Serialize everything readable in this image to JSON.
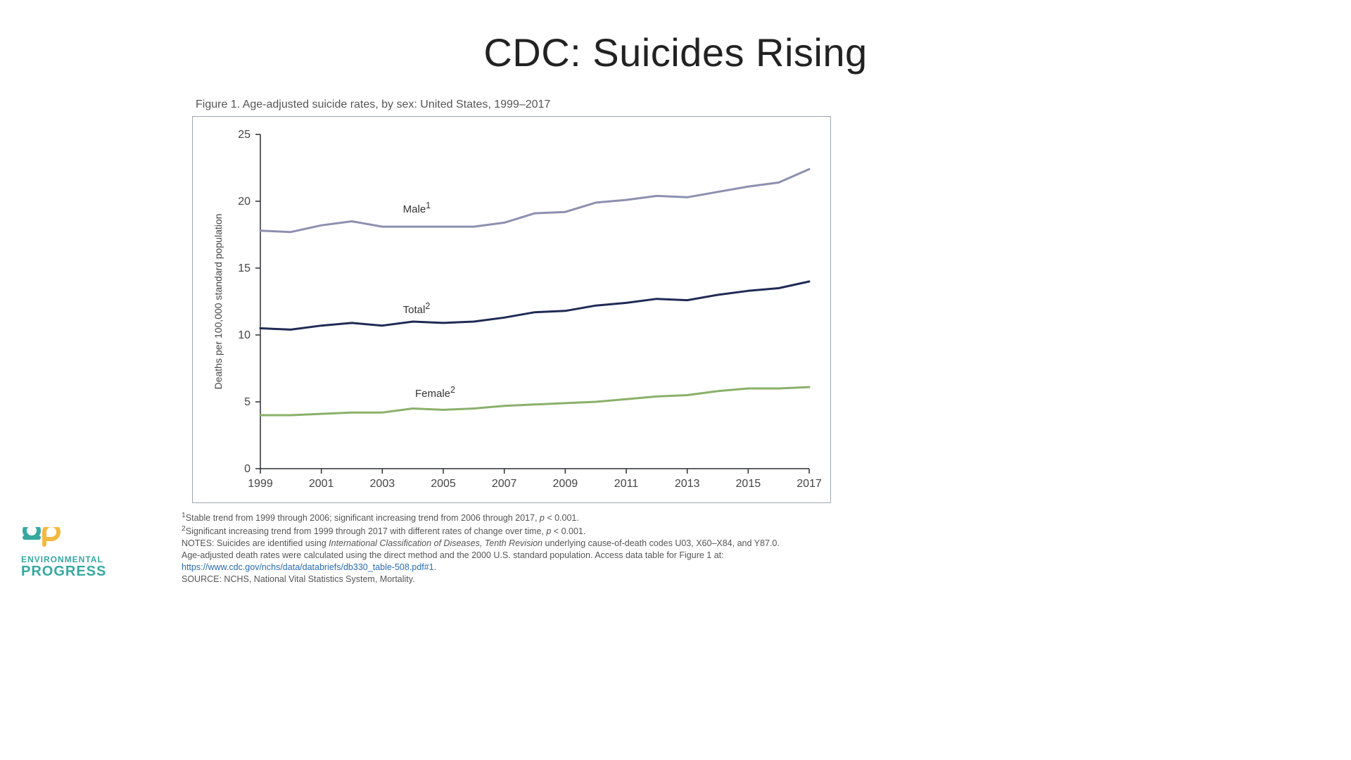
{
  "slide": {
    "title": "CDC: Suicides Rising"
  },
  "figure": {
    "caption": "Figure 1. Age-adjusted suicide rates, by sex: United States, 1999–2017",
    "type": "line",
    "background_color": "#ffffff",
    "frame_color": "#9fa6ad",
    "axis_color": "#2b2f33",
    "tick_font_size": 16,
    "y_axis": {
      "label": "Deaths per 100,000 standard population",
      "label_font_size": 14,
      "min": 0,
      "max": 25,
      "tick_step": 5,
      "ticks": [
        0,
        5,
        10,
        15,
        20,
        25
      ]
    },
    "x_axis": {
      "min": 1999,
      "max": 2017,
      "tick_step": 2,
      "ticks": [
        1999,
        2001,
        2003,
        2005,
        2007,
        2009,
        2011,
        2013,
        2015,
        2017
      ]
    },
    "years": [
      1999,
      2000,
      2001,
      2002,
      2003,
      2004,
      2005,
      2006,
      2007,
      2008,
      2009,
      2010,
      2011,
      2012,
      2013,
      2014,
      2015,
      2016,
      2017
    ],
    "series": [
      {
        "key": "male",
        "label_html": "Male<sup>1</sup>",
        "label_plain": "Male¹",
        "color": "#8d8fb0",
        "line_width": 3,
        "label_position": {
          "x": 2004.6,
          "y": 19.1
        },
        "values": [
          17.8,
          17.7,
          18.2,
          18.5,
          18.1,
          18.1,
          18.1,
          18.1,
          18.4,
          19.1,
          19.2,
          19.9,
          20.1,
          20.4,
          20.3,
          20.7,
          21.1,
          21.4,
          22.4
        ]
      },
      {
        "key": "total",
        "label_html": "Total<sup>2</sup>",
        "label_plain": "Total²",
        "color": "#1f2a55",
        "line_width": 3,
        "label_position": {
          "x": 2004.6,
          "y": 11.6
        },
        "values": [
          10.5,
          10.4,
          10.7,
          10.9,
          10.7,
          11.0,
          10.9,
          11.0,
          11.3,
          11.7,
          11.8,
          12.2,
          12.4,
          12.7,
          12.6,
          13.0,
          13.3,
          13.5,
          14.0
        ]
      },
      {
        "key": "female",
        "label_html": "Female<sup>2</sup>",
        "label_plain": "Female²",
        "color": "#8ab06a",
        "line_width": 3,
        "label_position": {
          "x": 2005.0,
          "y": 5.3
        },
        "values": [
          4.0,
          4.0,
          4.1,
          4.2,
          4.2,
          4.5,
          4.4,
          4.5,
          4.7,
          4.8,
          4.9,
          5.0,
          5.2,
          5.4,
          5.5,
          5.8,
          6.0,
          6.0,
          6.1
        ]
      }
    ]
  },
  "footnotes": {
    "note1_html": "<sup>1</sup>Stable trend from 1999 through 2006; significant increasing trend from 2006 through 2017, <i>p</i> &lt; 0.001.",
    "note2_html": "<sup>2</sup>Significant increasing trend from 1999 through 2017 with different rates of change over time, <i>p</i> &lt; 0.001.",
    "notes_html": "NOTES: Suicides are identified using <i>International Classification of Diseases, Tenth Revision</i> underlying cause-of-death codes U03, X60–X84, and Y87.0.",
    "age_adj": "Age-adjusted death rates were calculated using the direct method and the 2000 U.S. standard population. Access data table for Figure 1 at:",
    "link_text": "https://www.cdc.gov/nchs/data/databriefs/db330_table-508.pdf#1",
    "source": "SOURCE: NCHS, National Vital Statistics System, Mortality."
  },
  "logo": {
    "line1": "ENVIRONMENTAL",
    "line2": "PROGRESS",
    "icon_color1": "#35a9a1",
    "icon_color2": "#f4b93f"
  }
}
